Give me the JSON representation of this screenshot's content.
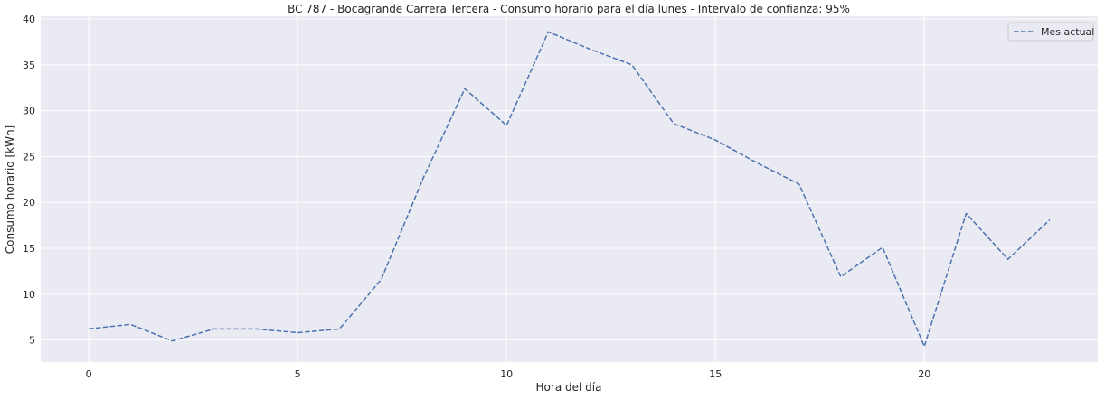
{
  "chart_data": {
    "type": "line",
    "title": "BC 787 - Bocagrande Carrera Tercera - Consumo horario para el día lunes - Intervalo de confianza: 95%",
    "xlabel": "Hora del día",
    "ylabel": "Consumo horario [kWh]",
    "xlim": [
      -1.15,
      24.15
    ],
    "ylim": [
      2.6,
      40.3
    ],
    "x_ticks": [
      0,
      5,
      10,
      15,
      20
    ],
    "y_ticks": [
      5,
      10,
      15,
      20,
      25,
      30,
      35,
      40
    ],
    "grid": true,
    "legend_position": "top-right",
    "background": "#eaeaf2",
    "series": [
      {
        "name": "Mes actual",
        "color": "#4c72b0",
        "line_style": "dashed",
        "x": [
          0,
          1,
          2,
          3,
          4,
          5,
          6,
          7,
          8,
          9,
          10,
          11,
          12,
          13,
          14,
          15,
          16,
          17,
          18,
          19,
          20,
          21,
          22,
          23
        ],
        "values": [
          6.2,
          6.7,
          4.9,
          6.2,
          6.2,
          5.8,
          6.2,
          11.6,
          22.6,
          32.4,
          28.4,
          38.6,
          36.7,
          35.0,
          28.6,
          26.8,
          24.3,
          22.0,
          11.9,
          15.1,
          4.3,
          18.8,
          13.8,
          18.1
        ]
      }
    ]
  }
}
